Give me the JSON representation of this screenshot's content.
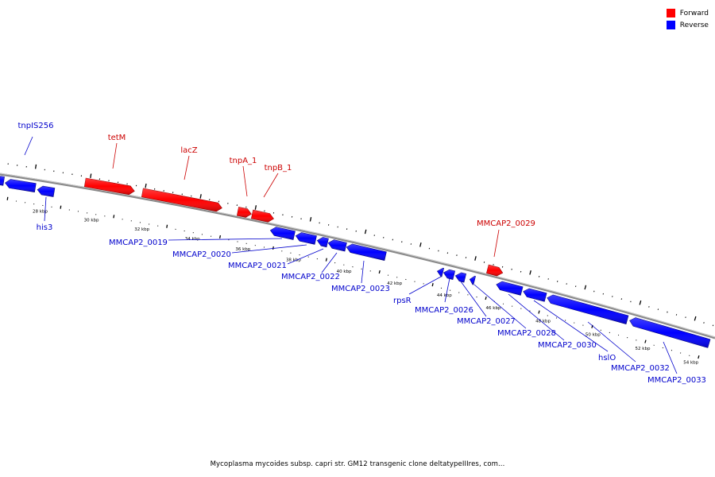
{
  "legend": [
    {
      "label": "Forward",
      "color": "#ff0000"
    },
    {
      "label": "Reverse",
      "color": "#0000ff"
    }
  ],
  "title": "Mycoplasma mycoides subsp. capri str. GM12 transgenic clone deltatypeIIIres, com...",
  "colors": {
    "forward": "#ff0000",
    "reverse": "#0000ff",
    "backbone": "#888888",
    "label_forward": "#cc0000",
    "label_reverse": "#0000cc"
  },
  "scale_labels": [
    "28 kbp",
    "30 kbp",
    "32 kbp",
    "34 kbp",
    "36 kbp",
    "38 kbp",
    "40 kbp",
    "42 kbp",
    "44 kbp",
    "46 kbp",
    "48 kbp",
    "50 kbp",
    "52 kbp",
    "54 kbp"
  ],
  "genes": [
    {
      "id": "g-left-a",
      "strand": "reverse",
      "label": ""
    },
    {
      "id": "g-left-b",
      "strand": "reverse",
      "label": ""
    },
    {
      "id": "g-his3",
      "strand": "reverse",
      "label": "his3"
    },
    {
      "id": "g-tetm",
      "strand": "forward",
      "label": "tetM"
    },
    {
      "id": "g-lacz",
      "strand": "forward",
      "label": "lacZ"
    },
    {
      "id": "g-tnpa1",
      "strand": "forward",
      "label": "tnpA_1"
    },
    {
      "id": "g-tnpb1",
      "strand": "forward",
      "label": "tnpB_1"
    },
    {
      "id": "g-0019",
      "strand": "reverse",
      "label": "MMCAP2_0019"
    },
    {
      "id": "g-0020",
      "strand": "reverse",
      "label": "MMCAP2_0020"
    },
    {
      "id": "g-0021",
      "strand": "reverse",
      "label": "MMCAP2_0021"
    },
    {
      "id": "g-0022",
      "strand": "reverse",
      "label": "MMCAP2_0022"
    },
    {
      "id": "g-0023",
      "strand": "reverse",
      "label": "MMCAP2_0023"
    },
    {
      "id": "g-rpsr",
      "strand": "reverse",
      "label": "rpsR"
    },
    {
      "id": "g-0026",
      "strand": "reverse",
      "label": "MMCAP2_0026"
    },
    {
      "id": "g-0027",
      "strand": "reverse",
      "label": "MMCAP2_0027"
    },
    {
      "id": "g-0028",
      "strand": "reverse",
      "label": "MMCAP2_0028"
    },
    {
      "id": "g-0029",
      "strand": "forward",
      "label": "MMCAP2_0029"
    },
    {
      "id": "g-0030",
      "strand": "reverse",
      "label": "MMCAP2_0030"
    },
    {
      "id": "g-hsio",
      "strand": "reverse",
      "label": "hslO"
    },
    {
      "id": "g-0032",
      "strand": "reverse",
      "label": "MMCAP2_0032"
    },
    {
      "id": "g-0033",
      "strand": "reverse",
      "label": "MMCAP2_0033"
    }
  ],
  "floating_labels": [
    {
      "label": "tnpIS256",
      "strand": "reverse"
    }
  ]
}
